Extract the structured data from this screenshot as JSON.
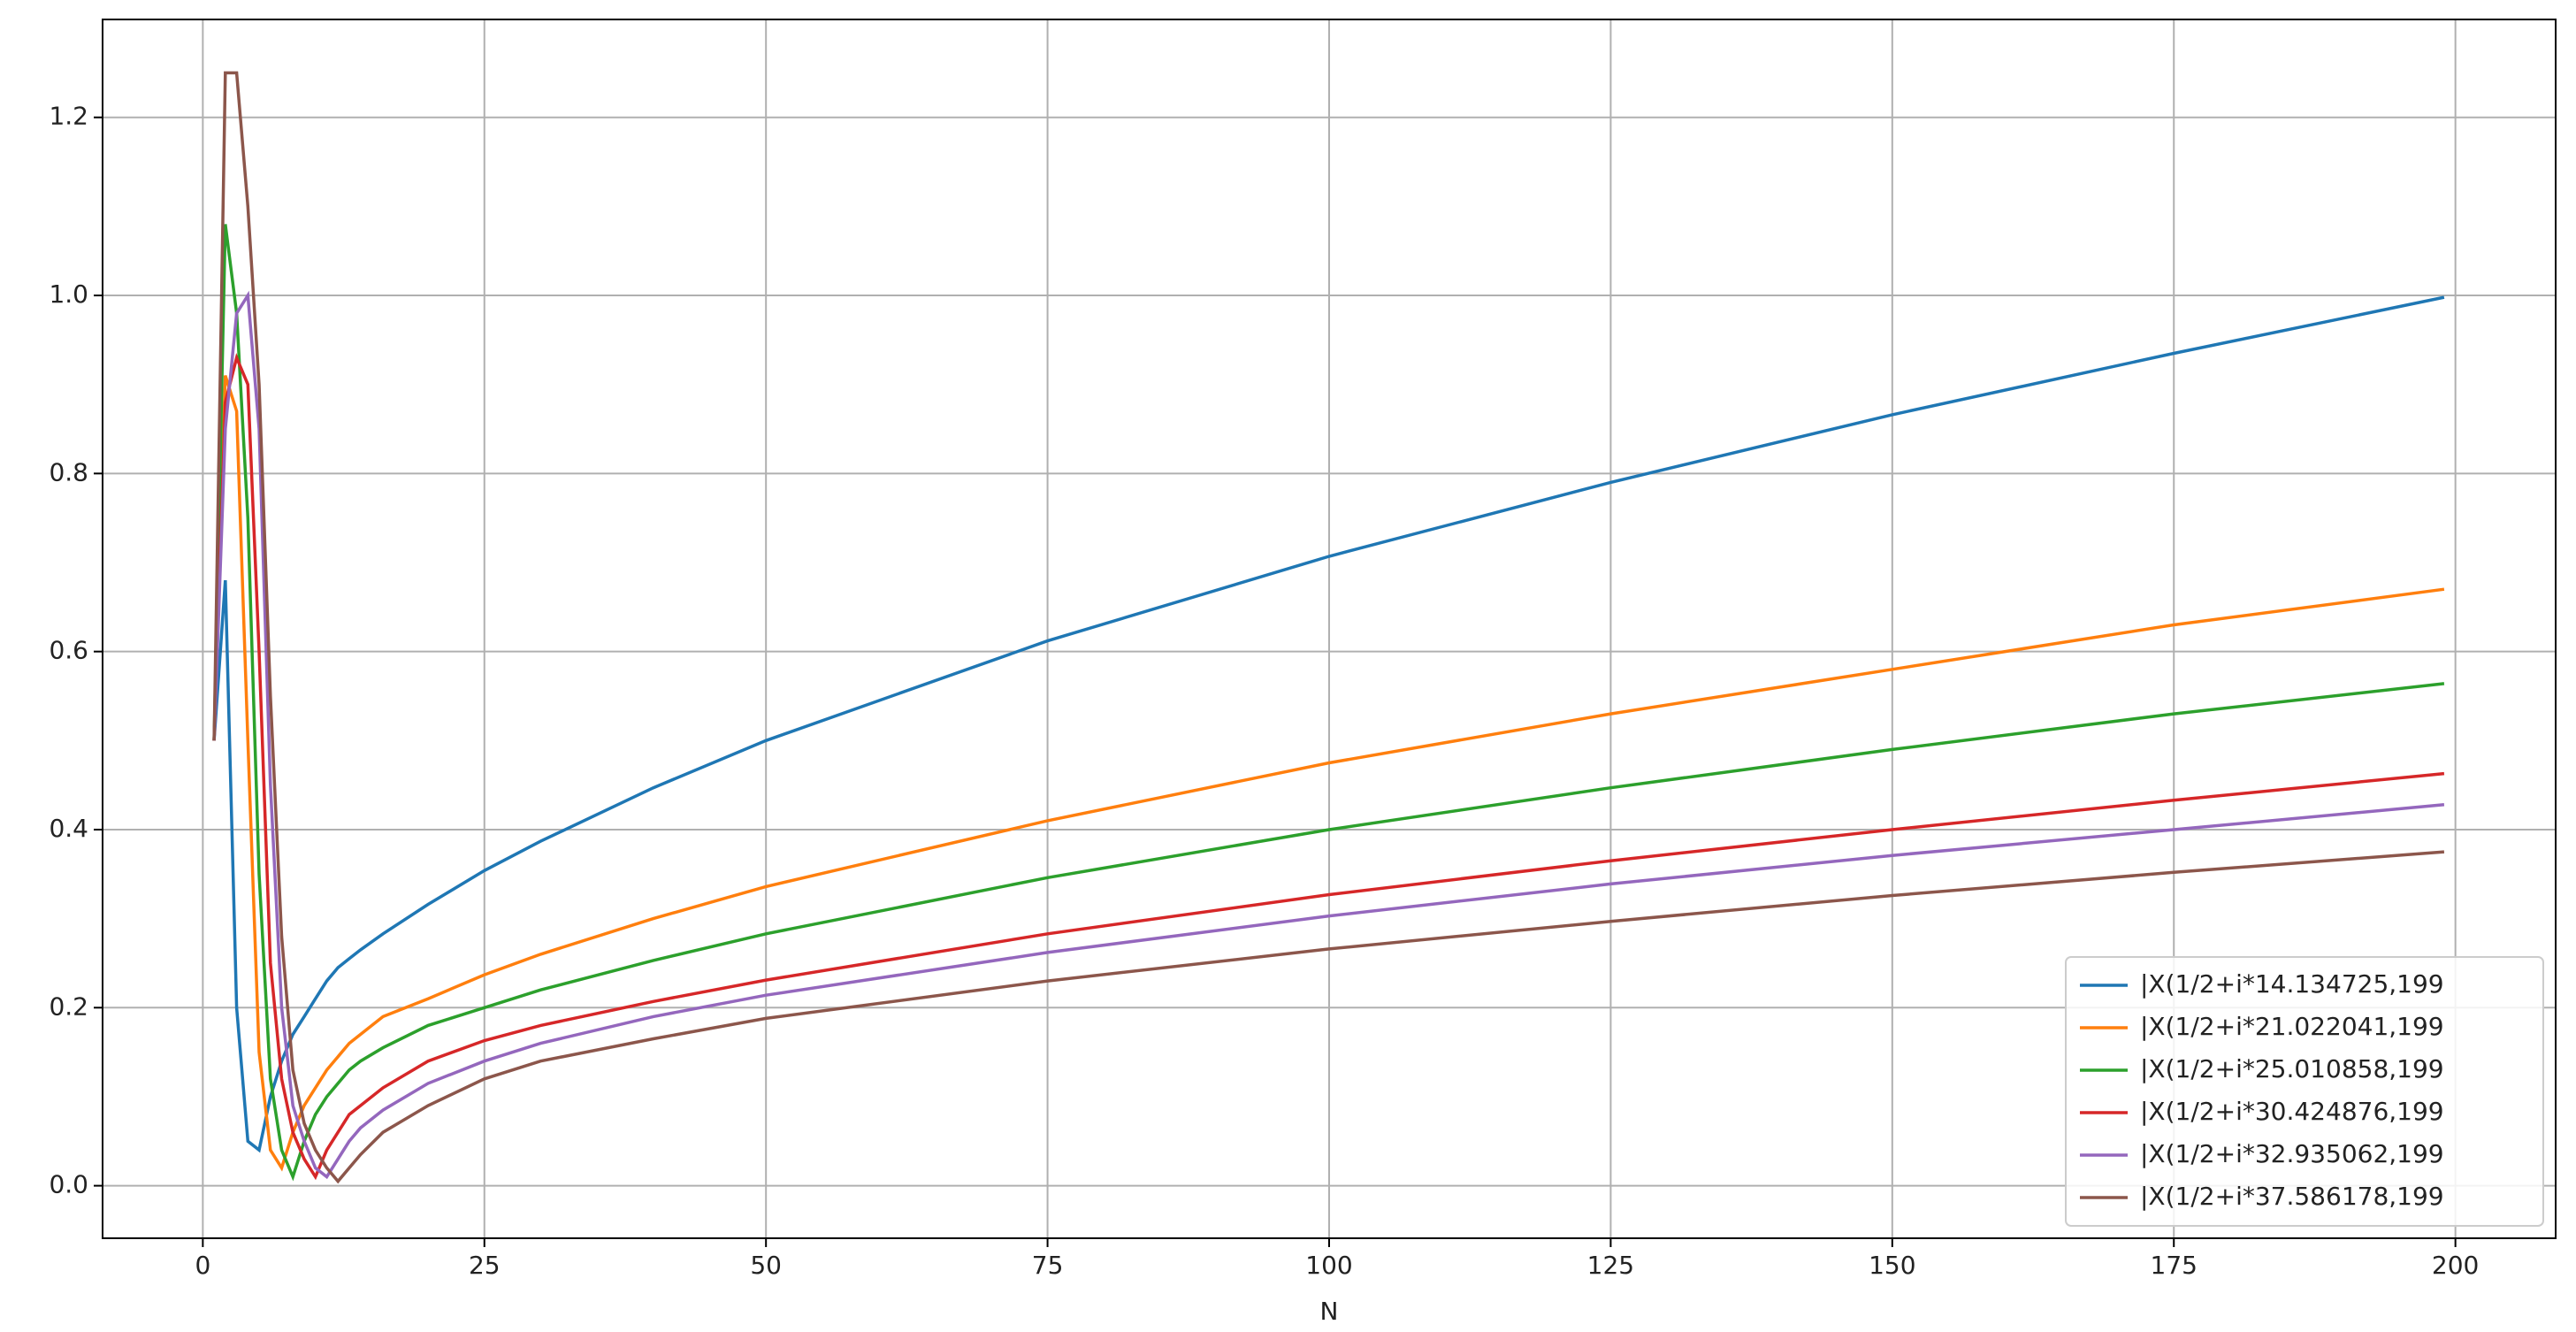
{
  "chart_data": {
    "type": "line",
    "xlabel": "N",
    "x": [
      1,
      2,
      3,
      4,
      5,
      6,
      7,
      8,
      9,
      10,
      11,
      12,
      13,
      14,
      16,
      20,
      25,
      30,
      40,
      50,
      75,
      100,
      125,
      150,
      175,
      199
    ],
    "series": [
      {
        "name": "|X(1/2+i*14.134725,199",
        "color": "#1f77b4",
        "values": [
          0.5,
          0.68,
          0.2,
          0.05,
          0.04,
          0.1,
          0.14,
          0.17,
          0.19,
          0.21,
          0.23,
          0.245,
          0.255,
          0.265,
          0.283,
          0.316,
          0.354,
          0.387,
          0.447,
          0.5,
          0.612,
          0.707,
          0.79,
          0.866,
          0.935,
          0.998
        ]
      },
      {
        "name": "|X(1/2+i*21.022041,199",
        "color": "#ff7f0e",
        "values": [
          0.5,
          0.91,
          0.87,
          0.5,
          0.15,
          0.04,
          0.02,
          0.06,
          0.09,
          0.11,
          0.13,
          0.145,
          0.16,
          0.17,
          0.19,
          0.21,
          0.237,
          0.26,
          0.3,
          0.336,
          0.41,
          0.475,
          0.53,
          0.58,
          0.63,
          0.67
        ]
      },
      {
        "name": "|X(1/2+i*25.010858,199",
        "color": "#2ca02c",
        "values": [
          0.5,
          1.08,
          0.98,
          0.75,
          0.35,
          0.12,
          0.04,
          0.01,
          0.05,
          0.08,
          0.1,
          0.115,
          0.13,
          0.14,
          0.155,
          0.18,
          0.2,
          0.22,
          0.253,
          0.283,
          0.346,
          0.4,
          0.447,
          0.49,
          0.53,
          0.564
        ]
      },
      {
        "name": "|X(1/2+i*30.424876,199",
        "color": "#d62728",
        "values": [
          0.5,
          0.88,
          0.93,
          0.9,
          0.6,
          0.25,
          0.12,
          0.06,
          0.03,
          0.01,
          0.04,
          0.06,
          0.08,
          0.09,
          0.11,
          0.14,
          0.163,
          0.18,
          0.207,
          0.231,
          0.283,
          0.327,
          0.365,
          0.4,
          0.433,
          0.463
        ]
      },
      {
        "name": "|X(1/2+i*32.935062,199",
        "color": "#9467bd",
        "values": [
          0.5,
          0.85,
          0.98,
          1.0,
          0.85,
          0.45,
          0.2,
          0.09,
          0.05,
          0.02,
          0.01,
          0.03,
          0.05,
          0.065,
          0.085,
          0.115,
          0.14,
          0.16,
          0.19,
          0.214,
          0.262,
          0.303,
          0.339,
          0.371,
          0.4,
          0.428
        ]
      },
      {
        "name": "|X(1/2+i*37.586178,199",
        "color": "#8c564b",
        "values": [
          0.5,
          1.25,
          1.25,
          1.1,
          0.9,
          0.55,
          0.28,
          0.13,
          0.07,
          0.04,
          0.02,
          0.005,
          0.02,
          0.035,
          0.06,
          0.09,
          0.12,
          0.14,
          0.165,
          0.188,
          0.23,
          0.266,
          0.297,
          0.326,
          0.352,
          0.375
        ]
      }
    ],
    "xlim": [
      -8.9,
      208.9
    ],
    "ylim": [
      -0.059,
      1.31
    ],
    "xticks": [
      0,
      25,
      50,
      75,
      100,
      125,
      150,
      175,
      200
    ],
    "yticks": [
      {
        "value": 0,
        "label": "0.0"
      },
      0.2,
      0.4,
      0.6,
      0.8,
      {
        "value": 1,
        "label": "1.0"
      },
      1.2
    ],
    "grid": true,
    "legend": "lower right"
  }
}
